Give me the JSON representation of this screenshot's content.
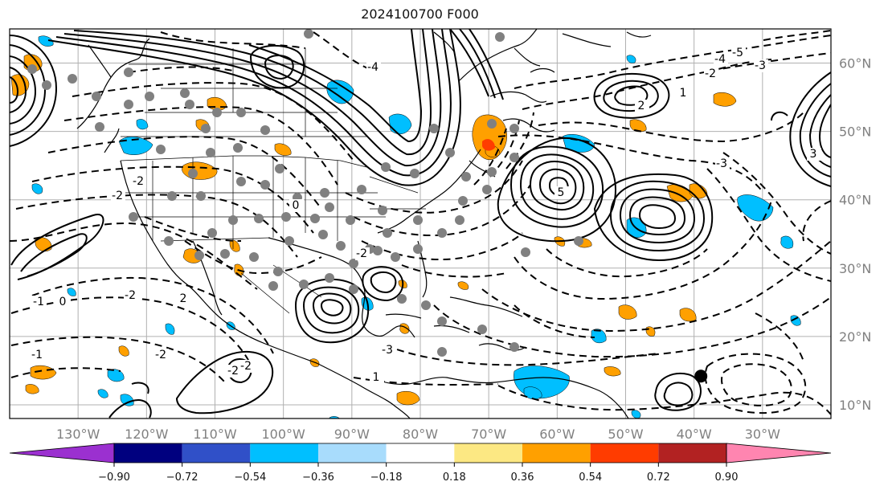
{
  "title": "2024100700 F000",
  "map": {
    "lon_range": [
      -140,
      -20
    ],
    "lat_range": [
      8,
      65
    ],
    "lon_ticks": [
      {
        "lon": -130,
        "label": "130°W"
      },
      {
        "lon": -120,
        "label": "120°W"
      },
      {
        "lon": -110,
        "label": "110°W"
      },
      {
        "lon": -100,
        "label": "100°W"
      },
      {
        "lon": -90,
        "label": "90°W"
      },
      {
        "lon": -80,
        "label": "80°W"
      },
      {
        "lon": -70,
        "label": "70°W"
      },
      {
        "lon": -60,
        "label": "60°W"
      },
      {
        "lon": -50,
        "label": "50°W"
      },
      {
        "lon": -40,
        "label": "40°W"
      },
      {
        "lon": -30,
        "label": "30°W"
      }
    ],
    "lat_ticks": [
      {
        "lat": 60,
        "label": "60°N"
      },
      {
        "lat": 50,
        "label": "50°N"
      },
      {
        "lat": 40,
        "label": "40°N"
      },
      {
        "lat": 30,
        "label": "30°N"
      },
      {
        "lat": 20,
        "label": "20°N"
      },
      {
        "lat": 10,
        "label": "10°N"
      }
    ],
    "gridlines": true,
    "contour_labels": [
      "-4",
      "-5",
      "-4",
      "-3",
      "-2",
      "1",
      "2",
      "3",
      "5",
      "-3",
      "-2",
      "-2",
      "-1",
      "0",
      "-1",
      "-2",
      "2",
      "-2",
      "-2",
      "-2",
      "1",
      "-2",
      "0",
      "-3"
    ],
    "storm_marker": {
      "lon": -39,
      "lat": 14.2
    }
  },
  "colorbar": {
    "colors": [
      "#9b30d0",
      "#00007f",
      "#3050c8",
      "#00bfff",
      "#a8dcfc",
      "#ffffff",
      "#fce883",
      "#ffa000",
      "#ff3c00",
      "#b22222",
      "#ff85b0"
    ],
    "tick_labels": [
      "−0.90",
      "−0.72",
      "−0.54",
      "−0.36",
      "−0.18",
      "0.18",
      "0.36",
      "0.54",
      "0.72",
      "0.90"
    ]
  }
}
